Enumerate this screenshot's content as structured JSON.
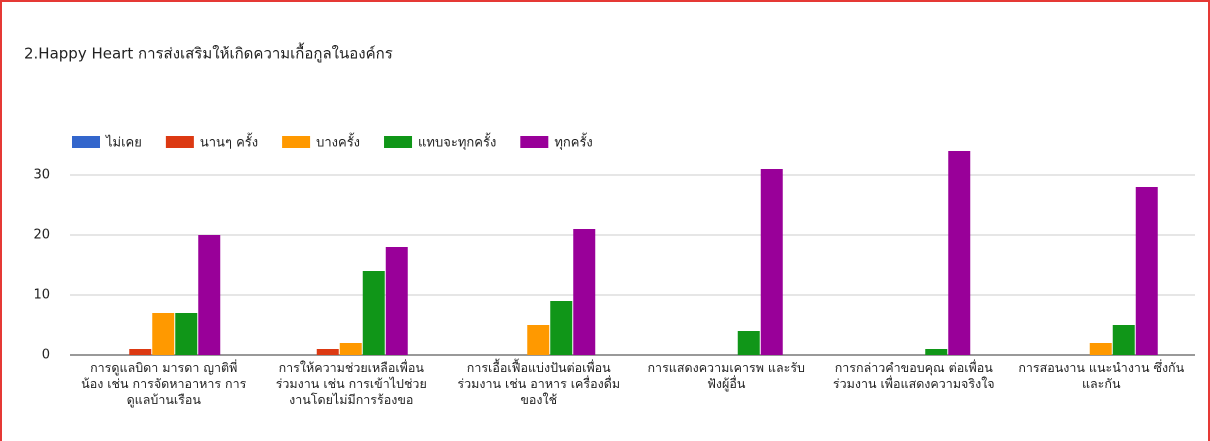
{
  "chart_data": {
    "type": "bar",
    "title": "2.Happy Heart การส่งเสริมให้เกิดความเกื้อกูลในองค์กร",
    "categories": [
      "การดูแลบิดา มารดา ญาติพี่\nน้อง เช่น การจัดหาอาหาร การ\nดูแลบ้านเรือน",
      "การให้ความช่วยเหลือเพื่อน\nร่วมงาน เช่น การเข้าไปช่วย\nงานโดยไม่มีการร้องขอ",
      "การเอื้อเฟื้อแบ่งปันต่อเพื่อน\nร่วมงาน เช่น อาหาร เครื่องดื่ม\nของใช้",
      "การแสดงความเคารพ และรับ\nฟังผู้อื่น",
      "การกล่าวคำขอบคุณ ต่อเพื่อน\nร่วมงาน เพื่อแสดงความจริงใจ",
      "การสอนงาน แนะนำงาน ซึ่งกัน\nและกัน"
    ],
    "series": [
      {
        "name": "ไม่เคย",
        "color": "#3366cc",
        "values": [
          0,
          0,
          0,
          0,
          0,
          0
        ]
      },
      {
        "name": "นานๆ ครั้ง",
        "color": "#dc3912",
        "values": [
          1,
          1,
          0,
          0,
          0,
          0
        ]
      },
      {
        "name": "บางครั้ง",
        "color": "#ff9900",
        "values": [
          7,
          2,
          5,
          0,
          0,
          2
        ]
      },
      {
        "name": "แทบจะทุกครั้ง",
        "color": "#109618",
        "values": [
          7,
          14,
          9,
          4,
          1,
          5
        ]
      },
      {
        "name": "ทุกครั้ง",
        "color": "#990099",
        "values": [
          20,
          18,
          21,
          31,
          34,
          28
        ]
      }
    ],
    "ylim": [
      0,
      35
    ],
    "yticks": [
      0,
      10,
      20,
      30
    ],
    "grid": true,
    "legend": "top"
  }
}
